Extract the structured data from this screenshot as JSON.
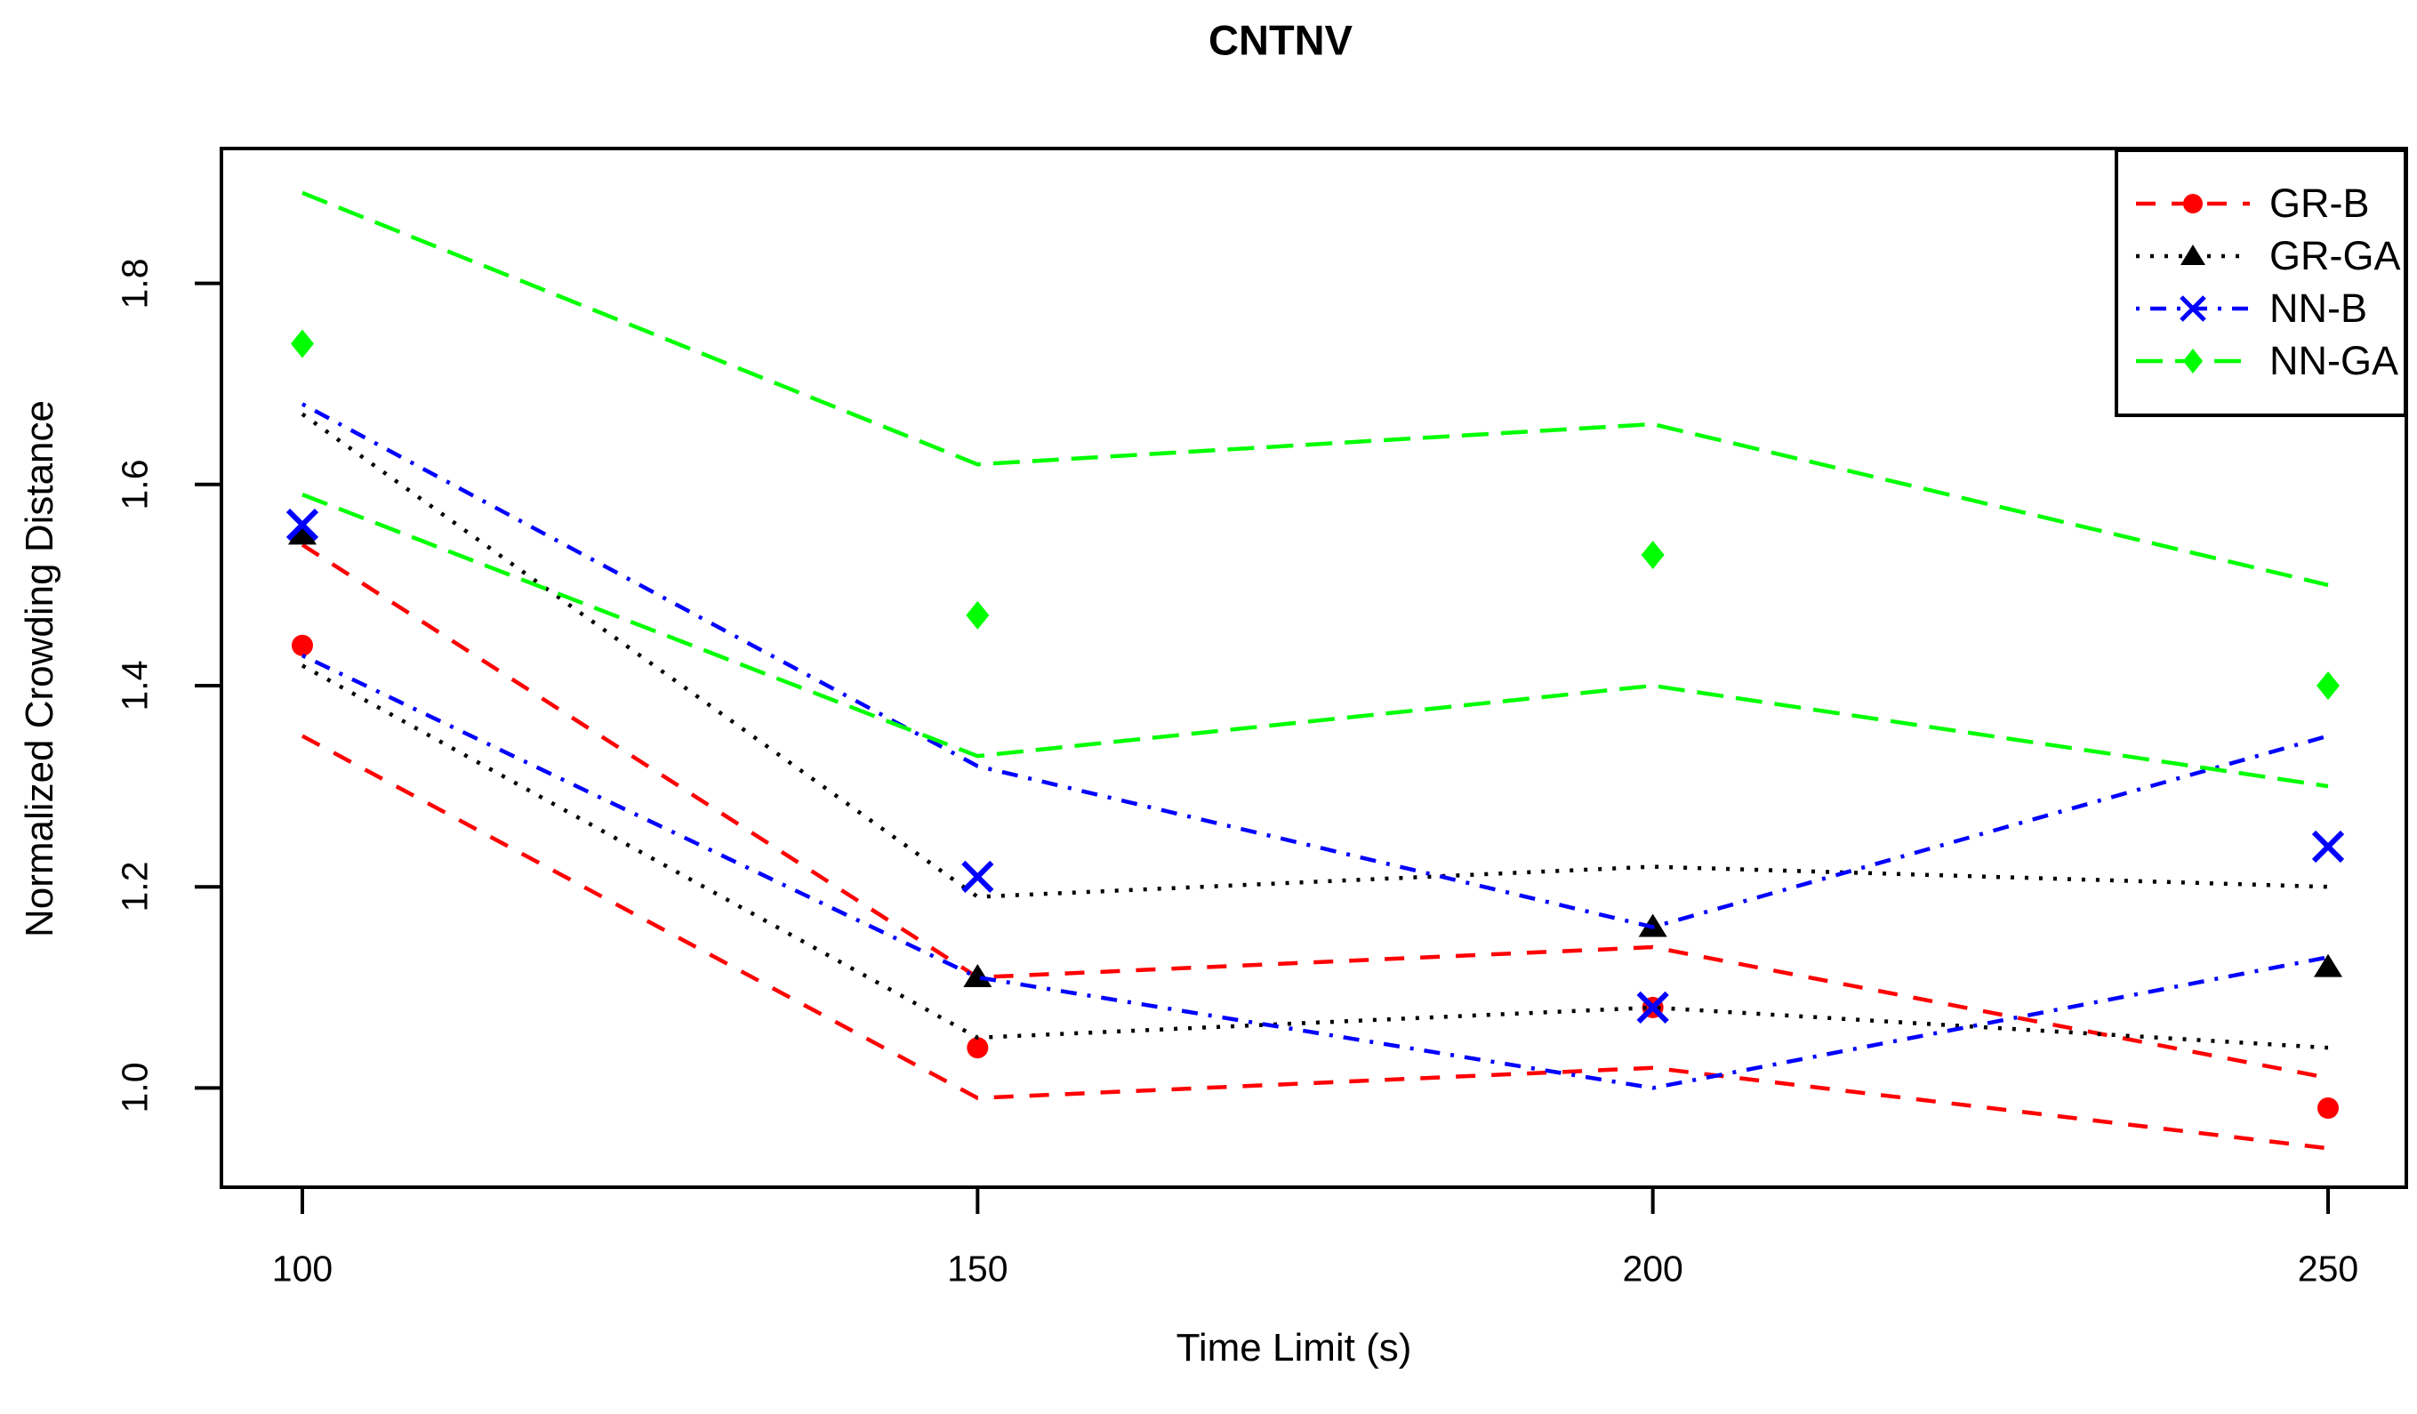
{
  "chart_data": {
    "type": "line",
    "title": "CNTNV",
    "xlabel": "Time Limit (s)",
    "ylabel": "Normalized Crowding Distance",
    "x": [
      100,
      150,
      200,
      250
    ],
    "xtick_labels": [
      "100",
      "150",
      "200",
      "250"
    ],
    "ytick_values": [
      1.0,
      1.2,
      1.4,
      1.6,
      1.8
    ],
    "ytick_labels": [
      "1.0",
      "1.2",
      "1.4",
      "1.6",
      "1.8"
    ],
    "xlim": [
      94,
      256
    ],
    "ylim": [
      0.9,
      1.93
    ],
    "grid": false,
    "legend_position": "topright",
    "interval_style": "each series shows dashed upper and lower bound lines with mean markers (no line through markers)",
    "series": [
      {
        "name": "GR-B",
        "color": "#FF0000",
        "line_style": "dashed",
        "marker": "circle",
        "mean": [
          1.44,
          1.04,
          1.08,
          0.98
        ],
        "upper": [
          1.54,
          1.11,
          1.14,
          1.01
        ],
        "lower": [
          1.35,
          0.99,
          1.02,
          0.94
        ]
      },
      {
        "name": "GR-GA",
        "color": "#000000",
        "line_style": "dotted",
        "marker": "triangle",
        "mean": [
          1.55,
          1.11,
          1.16,
          1.12
        ],
        "upper": [
          1.67,
          1.19,
          1.22,
          1.2
        ],
        "lower": [
          1.42,
          1.05,
          1.08,
          1.04
        ]
      },
      {
        "name": "NN-B",
        "color": "#0000FF",
        "line_style": "dashdot",
        "marker": "x",
        "mean": [
          1.56,
          1.21,
          1.08,
          1.24
        ],
        "upper": [
          1.68,
          1.32,
          1.16,
          1.35
        ],
        "lower": [
          1.43,
          1.11,
          1.0,
          1.13
        ]
      },
      {
        "name": "NN-GA",
        "color": "#00FF00",
        "line_style": "longdash",
        "marker": "diamond",
        "mean": [
          1.74,
          1.47,
          1.53,
          1.4
        ],
        "upper": [
          1.89,
          1.62,
          1.66,
          1.5
        ],
        "lower": [
          1.59,
          1.33,
          1.4,
          1.3
        ]
      }
    ]
  }
}
